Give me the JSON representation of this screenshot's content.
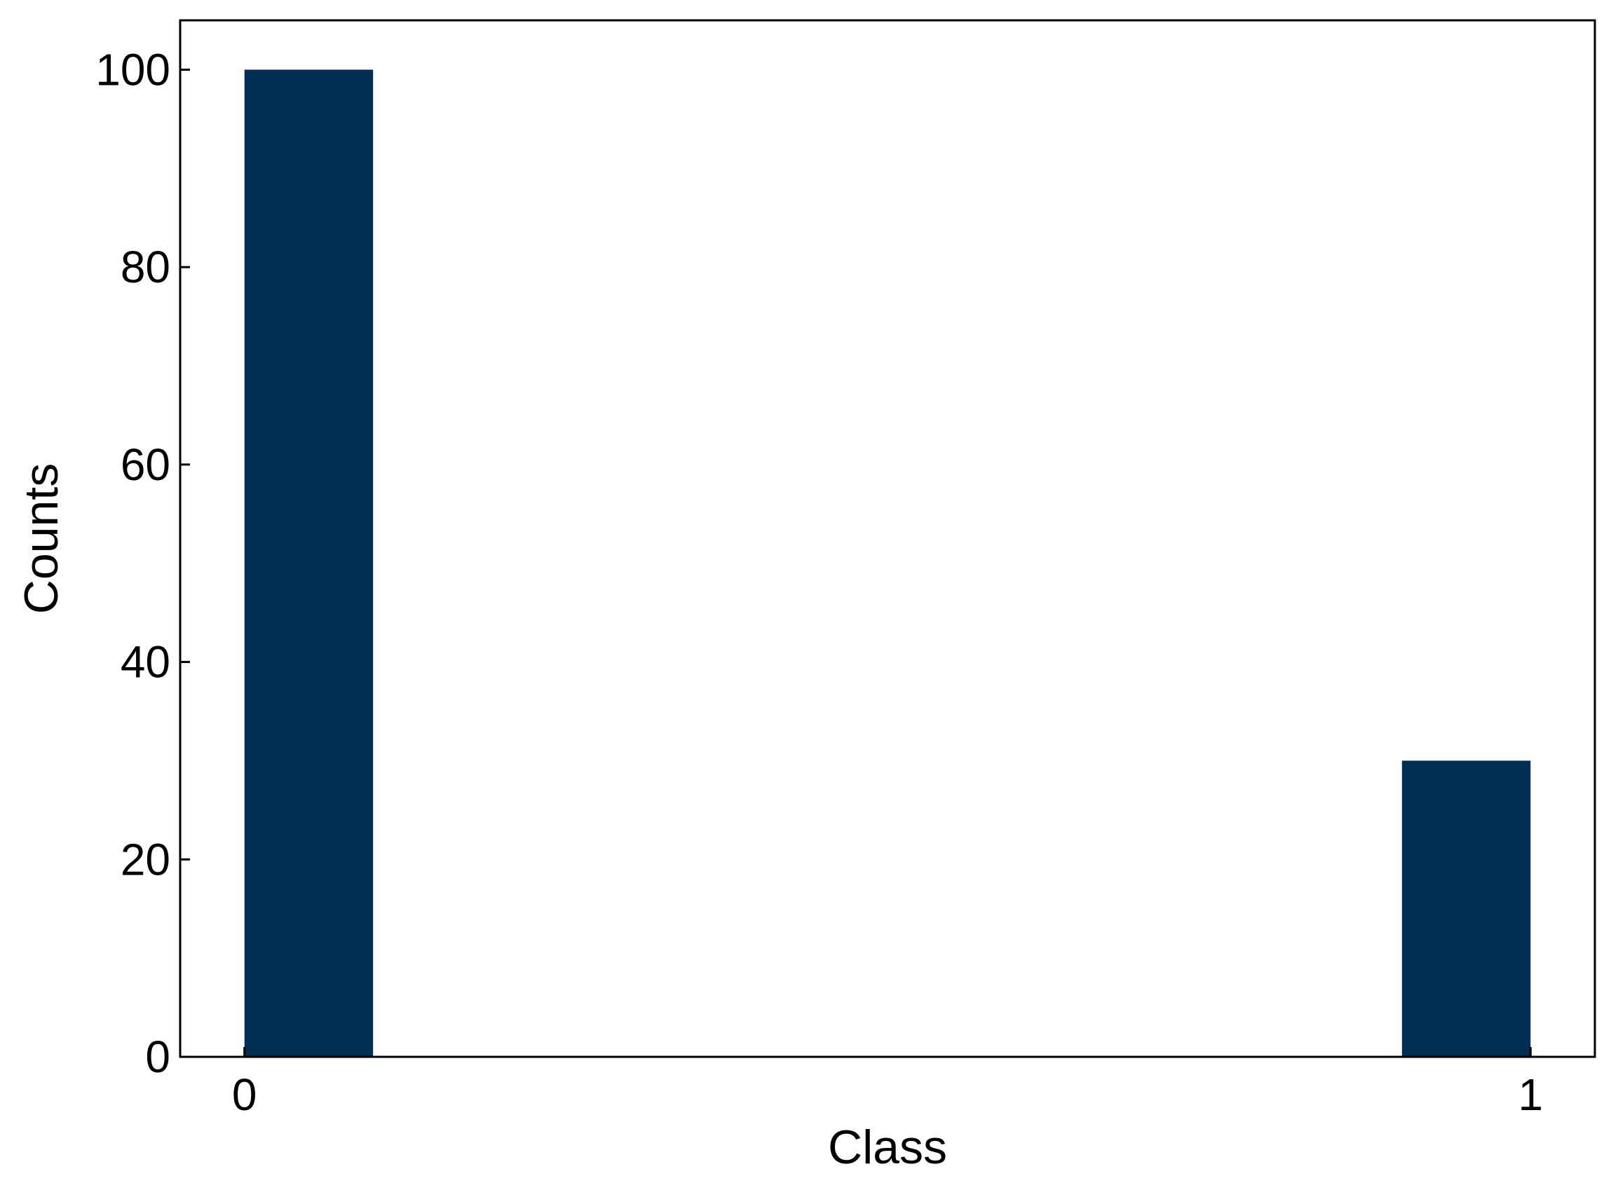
{
  "chart_data": {
    "type": "bar",
    "title": "",
    "xlabel": "Class",
    "ylabel": "Counts",
    "bins": [
      {
        "x_start": 0.0,
        "x_end": 0.1,
        "count": 100
      },
      {
        "x_start": 0.9,
        "x_end": 1.0,
        "count": 30
      }
    ],
    "x_ticks": [
      0,
      1
    ],
    "y_ticks": [
      0,
      20,
      40,
      60,
      80,
      100
    ],
    "xlim": [
      -0.05,
      1.05
    ],
    "ylim": [
      0,
      105
    ],
    "grid": false,
    "bar_color": "#002f56"
  }
}
